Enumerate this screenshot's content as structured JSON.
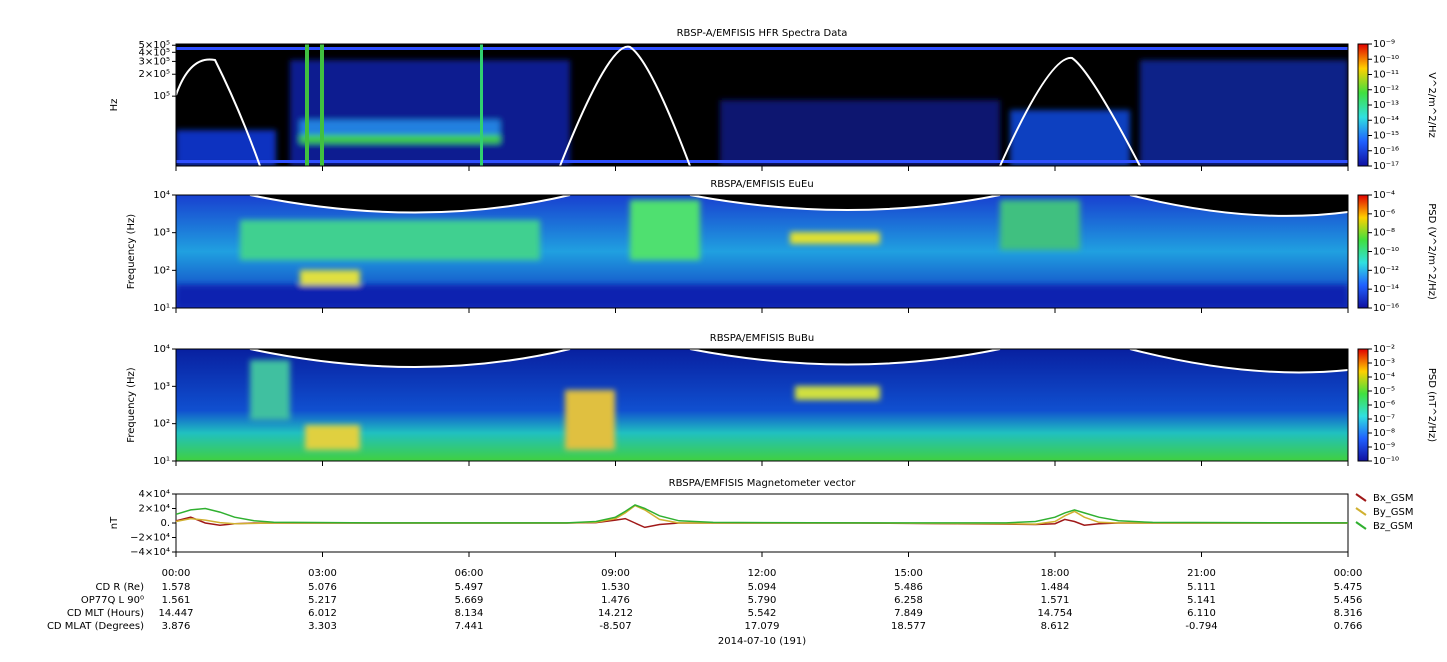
{
  "chart_data": [
    {
      "type": "spectrogram",
      "title": "RBSP-A/EMFISIS  HFR Spectra Data",
      "ylabel": "Hz",
      "log_y": true,
      "ylim": [
        11000,
        520000
      ],
      "yticks": [
        {
          "value": 100000,
          "label": "10⁵"
        },
        {
          "value": 200000,
          "label": "2×10⁵"
        },
        {
          "value": 300000,
          "label": "3×10⁵"
        },
        {
          "value": 400000,
          "label": "4×10⁵"
        },
        {
          "value": 500000,
          "label": "5×10⁵"
        }
      ],
      "colorbar_label": "V^2/m^2/Hz",
      "clim": [
        1e-17,
        1e-09
      ],
      "cticks": [
        {
          "value": 1e-09,
          "label": "10⁻⁹"
        },
        {
          "value": 1e-10,
          "label": "10⁻¹⁰"
        },
        {
          "value": 1e-11,
          "label": "10⁻¹¹"
        },
        {
          "value": 1e-12,
          "label": "10⁻¹²"
        },
        {
          "value": 1e-13,
          "label": "10⁻¹³"
        },
        {
          "value": 1e-14,
          "label": "10⁻¹⁴"
        },
        {
          "value": 1e-15,
          "label": "10⁻¹⁵"
        },
        {
          "value": 1e-16,
          "label": "10⁻¹⁶"
        },
        {
          "value": 1e-17,
          "label": "10⁻¹⁷"
        }
      ]
    },
    {
      "type": "spectrogram",
      "title": "RBSPA/EMFISIS  EuEu",
      "ylabel": "Frequency (Hz)",
      "log_y": true,
      "ylim": [
        10,
        10000
      ],
      "yticks": [
        {
          "value": 10,
          "label": "10¹"
        },
        {
          "value": 100,
          "label": "10²"
        },
        {
          "value": 1000,
          "label": "10³"
        },
        {
          "value": 10000,
          "label": "10⁴"
        }
      ],
      "colorbar_label": "PSD (V^2/m^2/Hz)",
      "clim": [
        1e-16,
        0.0001
      ],
      "cticks": [
        {
          "value": 0.0001,
          "label": "10⁻⁴"
        },
        {
          "value": 1e-06,
          "label": "10⁻⁶"
        },
        {
          "value": 1e-08,
          "label": "10⁻⁸"
        },
        {
          "value": 1e-10,
          "label": "10⁻¹⁰"
        },
        {
          "value": 1e-12,
          "label": "10⁻¹²"
        },
        {
          "value": 1e-14,
          "label": "10⁻¹⁴"
        },
        {
          "value": 1e-16,
          "label": "10⁻¹⁶"
        }
      ]
    },
    {
      "type": "spectrogram",
      "title": "RBSPA/EMFISIS  BuBu",
      "ylabel": "Frequency (Hz)",
      "log_y": true,
      "ylim": [
        10,
        10000
      ],
      "yticks": [
        {
          "value": 10,
          "label": "10¹"
        },
        {
          "value": 100,
          "label": "10²"
        },
        {
          "value": 1000,
          "label": "10³"
        },
        {
          "value": 10000,
          "label": "10⁴"
        }
      ],
      "colorbar_label": "PSD (nT^2/Hz)",
      "clim": [
        1e-10,
        0.01
      ],
      "cticks": [
        {
          "value": 0.01,
          "label": "10⁻²"
        },
        {
          "value": 0.001,
          "label": "10⁻³"
        },
        {
          "value": 0.0001,
          "label": "10⁻⁴"
        },
        {
          "value": 1e-05,
          "label": "10⁻⁵"
        },
        {
          "value": 1e-06,
          "label": "10⁻⁶"
        },
        {
          "value": 1e-07,
          "label": "10⁻⁷"
        },
        {
          "value": 1e-08,
          "label": "10⁻⁸"
        },
        {
          "value": 1e-09,
          "label": "10⁻⁹"
        },
        {
          "value": 1e-10,
          "label": "10⁻¹⁰"
        }
      ]
    },
    {
      "type": "line",
      "title": "RBSPA/EMFISIS  Magnetometer vector",
      "ylabel": "nT",
      "ylim": [
        -40000,
        40000
      ],
      "yticks": [
        {
          "value": 40000,
          "label": "4×10⁴"
        },
        {
          "value": 20000,
          "label": "2×10⁴"
        },
        {
          "value": 0,
          "label": "0."
        },
        {
          "value": -20000,
          "label": "−2×10⁴"
        },
        {
          "value": -40000,
          "label": "−4×10⁴"
        }
      ],
      "xlim": [
        0,
        24
      ],
      "xticks": [
        {
          "value": 0,
          "label": "00:00"
        },
        {
          "value": 3,
          "label": "03:00"
        },
        {
          "value": 6,
          "label": "06:00"
        },
        {
          "value": 9,
          "label": "09:00"
        },
        {
          "value": 12,
          "label": "12:00"
        },
        {
          "value": 15,
          "label": "15:00"
        },
        {
          "value": 18,
          "label": "18:00"
        },
        {
          "value": 21,
          "label": "21:00"
        },
        {
          "value": 24,
          "label": "00:00"
        }
      ],
      "x": [
        0,
        0.3,
        0.6,
        0.9,
        1.2,
        1.6,
        2,
        4,
        8,
        8.6,
        9.0,
        9.2,
        9.4,
        9.6,
        9.9,
        10.3,
        11,
        14,
        17,
        17.6,
        18.0,
        18.2,
        18.4,
        18.6,
        18.9,
        19.3,
        20,
        24
      ],
      "series": [
        {
          "name": "Bx_GSM",
          "color": "#a01818",
          "values": [
            3000,
            8000,
            0,
            -3000,
            -1000,
            0,
            0,
            0,
            0,
            500,
            4000,
            6000,
            0,
            -6000,
            -2000,
            0,
            0,
            0,
            -1500,
            -2000,
            -1000,
            5000,
            2000,
            -3000,
            -1000,
            0,
            0,
            0
          ]
        },
        {
          "name": "By_GSM",
          "color": "#d0b030",
          "values": [
            2000,
            6000,
            4000,
            500,
            -1000,
            -500,
            0,
            0,
            0,
            1000,
            6000,
            14000,
            24000,
            18000,
            5000,
            0,
            0,
            0,
            -1000,
            -1500,
            2000,
            10000,
            16000,
            8000,
            1000,
            0,
            0,
            0
          ]
        },
        {
          "name": "Bz_GSM",
          "color": "#30b030",
          "values": [
            12000,
            18000,
            20000,
            15000,
            8000,
            3000,
            1000,
            200,
            200,
            2000,
            8000,
            16000,
            25000,
            20000,
            10000,
            3000,
            800,
            200,
            200,
            2000,
            8000,
            14000,
            18000,
            14000,
            8000,
            3000,
            800,
            200
          ]
        }
      ]
    }
  ],
  "ephemeris": {
    "rows": [
      {
        "label": "CD R (Re)",
        "values": [
          "1.578",
          "5.076",
          "5.497",
          "1.530",
          "5.094",
          "5.486",
          "1.484",
          "5.111",
          "5.475"
        ]
      },
      {
        "label": "OP77Q L 90⁰",
        "values": [
          "1.561",
          "5.217",
          "5.669",
          "1.476",
          "5.790",
          "6.258",
          "1.571",
          "5.141",
          "5.456"
        ]
      },
      {
        "label": "CD MLT (Hours)",
        "values": [
          "14.447",
          "6.012",
          "8.134",
          "14.212",
          "5.542",
          "7.849",
          "14.754",
          "6.110",
          "8.316"
        ]
      },
      {
        "label": "CD MLAT (Degrees)",
        "values": [
          "3.876",
          "3.303",
          "7.441",
          "-8.507",
          "17.079",
          "18.577",
          "8.612",
          "-0.794",
          "0.766"
        ]
      }
    ],
    "date": "2014-07-10 (191)"
  }
}
